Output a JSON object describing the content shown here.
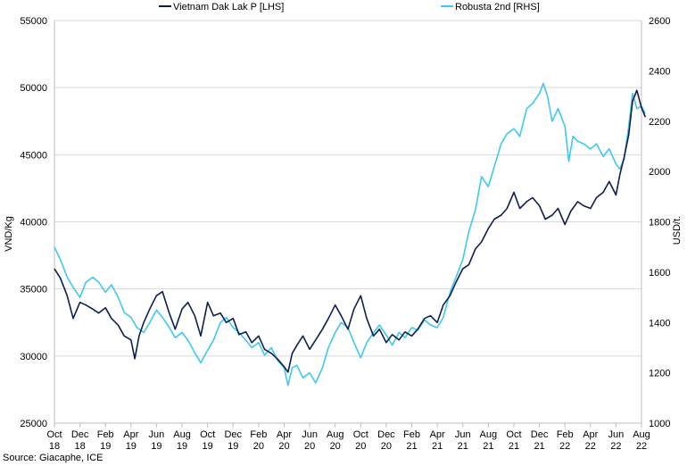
{
  "chart_data": {
    "type": "line",
    "title": "",
    "source": "Source: Giacaphe, ICE",
    "ylabel_left": "VND/Kg",
    "ylabel_right": "USD/t.",
    "ylim_left": [
      25000,
      55000
    ],
    "ylim_right": [
      1000,
      2600
    ],
    "yticks_left": [
      "25000",
      "30000",
      "35000",
      "40000",
      "45000",
      "50000",
      "55000"
    ],
    "yticks_right": [
      "1000",
      "1200",
      "1400",
      "1600",
      "1800",
      "2000",
      "2200",
      "2400",
      "2600"
    ],
    "xlim": [
      "2018-10",
      "2022-08"
    ],
    "xticks": [
      {
        "month": "Oct",
        "year": "18"
      },
      {
        "month": "Dec",
        "year": "18"
      },
      {
        "month": "Feb",
        "year": "19"
      },
      {
        "month": "Apr",
        "year": "19"
      },
      {
        "month": "Jun",
        "year": "19"
      },
      {
        "month": "Aug",
        "year": "19"
      },
      {
        "month": "Oct",
        "year": "19"
      },
      {
        "month": "Dec",
        "year": "19"
      },
      {
        "month": "Feb",
        "year": "20"
      },
      {
        "month": "Apr",
        "year": "20"
      },
      {
        "month": "Jun",
        "year": "20"
      },
      {
        "month": "Aug",
        "year": "20"
      },
      {
        "month": "Oct",
        "year": "20"
      },
      {
        "month": "Dec",
        "year": "20"
      },
      {
        "month": "Feb",
        "year": "21"
      },
      {
        "month": "Apr",
        "year": "21"
      },
      {
        "month": "Jun",
        "year": "21"
      },
      {
        "month": "Aug",
        "year": "21"
      },
      {
        "month": "Oct",
        "year": "21"
      },
      {
        "month": "Dec",
        "year": "21"
      },
      {
        "month": "Feb",
        "year": "22"
      },
      {
        "month": "Apr",
        "year": "22"
      },
      {
        "month": "Jun",
        "year": "22"
      },
      {
        "month": "Aug",
        "year": "22"
      }
    ],
    "grid": true,
    "legend_position": "top",
    "series": [
      {
        "name": "Vietnam Dak Lak P [LHS]",
        "axis": "left",
        "color": "#0d1f4f",
        "points": [
          [
            "2018-10-01",
            36500
          ],
          [
            "2018-10-15",
            35800
          ],
          [
            "2018-11-01",
            34500
          ],
          [
            "2018-11-15",
            32800
          ],
          [
            "2018-12-01",
            34000
          ],
          [
            "2018-12-15",
            33800
          ],
          [
            "2019-01-01",
            33500
          ],
          [
            "2019-01-15",
            33200
          ],
          [
            "2019-02-01",
            33600
          ],
          [
            "2019-02-15",
            32800
          ],
          [
            "2019-03-01",
            32300
          ],
          [
            "2019-03-15",
            31500
          ],
          [
            "2019-04-01",
            31200
          ],
          [
            "2019-04-10",
            29800
          ],
          [
            "2019-04-20",
            31500
          ],
          [
            "2019-05-01",
            32500
          ],
          [
            "2019-05-15",
            33500
          ],
          [
            "2019-06-01",
            34500
          ],
          [
            "2019-06-15",
            34800
          ],
          [
            "2019-07-01",
            33200
          ],
          [
            "2019-07-15",
            32000
          ],
          [
            "2019-08-01",
            33500
          ],
          [
            "2019-08-15",
            34000
          ],
          [
            "2019-09-01",
            33000
          ],
          [
            "2019-09-15",
            31500
          ],
          [
            "2019-10-01",
            34000
          ],
          [
            "2019-10-15",
            33000
          ],
          [
            "2019-11-01",
            33200
          ],
          [
            "2019-11-15",
            32500
          ],
          [
            "2019-12-01",
            32800
          ],
          [
            "2019-12-15",
            31600
          ],
          [
            "2020-01-01",
            31800
          ],
          [
            "2020-01-15",
            31000
          ],
          [
            "2020-02-01",
            31500
          ],
          [
            "2020-02-15",
            30500
          ],
          [
            "2020-03-01",
            30200
          ],
          [
            "2020-03-15",
            29800
          ],
          [
            "2020-04-01",
            29200
          ],
          [
            "2020-04-10",
            28800
          ],
          [
            "2020-04-20",
            30200
          ],
          [
            "2020-05-01",
            30800
          ],
          [
            "2020-05-15",
            31500
          ],
          [
            "2020-06-01",
            30500
          ],
          [
            "2020-06-15",
            31200
          ],
          [
            "2020-07-01",
            32000
          ],
          [
            "2020-07-15",
            32800
          ],
          [
            "2020-08-01",
            33800
          ],
          [
            "2020-08-15",
            33000
          ],
          [
            "2020-09-01",
            32000
          ],
          [
            "2020-09-15",
            33500
          ],
          [
            "2020-10-01",
            34500
          ],
          [
            "2020-10-15",
            32800
          ],
          [
            "2020-11-01",
            31500
          ],
          [
            "2020-11-15",
            32000
          ],
          [
            "2020-12-01",
            31000
          ],
          [
            "2020-12-15",
            31600
          ],
          [
            "2021-01-01",
            31200
          ],
          [
            "2021-01-15",
            31800
          ],
          [
            "2021-02-01",
            31500
          ],
          [
            "2021-02-15",
            32000
          ],
          [
            "2021-03-01",
            32800
          ],
          [
            "2021-03-15",
            33000
          ],
          [
            "2021-04-01",
            32500
          ],
          [
            "2021-04-15",
            33800
          ],
          [
            "2021-05-01",
            34500
          ],
          [
            "2021-05-15",
            35500
          ],
          [
            "2021-06-01",
            36500
          ],
          [
            "2021-06-15",
            36800
          ],
          [
            "2021-07-01",
            38000
          ],
          [
            "2021-07-15",
            38500
          ],
          [
            "2021-08-01",
            39500
          ],
          [
            "2021-08-15",
            40200
          ],
          [
            "2021-09-01",
            40500
          ],
          [
            "2021-09-15",
            41000
          ],
          [
            "2021-10-01",
            42200
          ],
          [
            "2021-10-15",
            41000
          ],
          [
            "2021-11-01",
            41500
          ],
          [
            "2021-11-15",
            41800
          ],
          [
            "2021-12-01",
            41200
          ],
          [
            "2021-12-15",
            40200
          ],
          [
            "2022-01-01",
            40500
          ],
          [
            "2022-01-15",
            41000
          ],
          [
            "2022-02-01",
            39800
          ],
          [
            "2022-02-15",
            40800
          ],
          [
            "2022-03-01",
            41500
          ],
          [
            "2022-03-15",
            41200
          ],
          [
            "2022-04-01",
            41000
          ],
          [
            "2022-04-15",
            41800
          ],
          [
            "2022-05-01",
            42200
          ],
          [
            "2022-05-15",
            43000
          ],
          [
            "2022-06-01",
            42000
          ],
          [
            "2022-06-10",
            43500
          ],
          [
            "2022-06-20",
            44800
          ],
          [
            "2022-07-01",
            46500
          ],
          [
            "2022-07-10",
            49000
          ],
          [
            "2022-07-20",
            49800
          ],
          [
            "2022-08-01",
            48500
          ],
          [
            "2022-08-10",
            47800
          ]
        ]
      },
      {
        "name": "Robusta 2nd [RHS]",
        "axis": "right",
        "color": "#3ec8ee",
        "points": [
          [
            "2018-10-01",
            1700
          ],
          [
            "2018-10-15",
            1650
          ],
          [
            "2018-11-01",
            1580
          ],
          [
            "2018-11-15",
            1540
          ],
          [
            "2018-12-01",
            1500
          ],
          [
            "2018-12-15",
            1560
          ],
          [
            "2019-01-01",
            1580
          ],
          [
            "2019-01-15",
            1560
          ],
          [
            "2019-02-01",
            1520
          ],
          [
            "2019-02-15",
            1550
          ],
          [
            "2019-03-01",
            1500
          ],
          [
            "2019-03-15",
            1440
          ],
          [
            "2019-04-01",
            1420
          ],
          [
            "2019-04-15",
            1380
          ],
          [
            "2019-05-01",
            1360
          ],
          [
            "2019-05-15",
            1400
          ],
          [
            "2019-06-01",
            1450
          ],
          [
            "2019-06-15",
            1420
          ],
          [
            "2019-07-01",
            1380
          ],
          [
            "2019-07-15",
            1340
          ],
          [
            "2019-08-01",
            1360
          ],
          [
            "2019-08-15",
            1330
          ],
          [
            "2019-09-01",
            1280
          ],
          [
            "2019-09-15",
            1240
          ],
          [
            "2019-10-01",
            1290
          ],
          [
            "2019-10-15",
            1330
          ],
          [
            "2019-11-01",
            1400
          ],
          [
            "2019-11-15",
            1420
          ],
          [
            "2019-12-01",
            1380
          ],
          [
            "2019-12-15",
            1360
          ],
          [
            "2020-01-01",
            1330
          ],
          [
            "2020-01-15",
            1300
          ],
          [
            "2020-02-01",
            1320
          ],
          [
            "2020-02-15",
            1270
          ],
          [
            "2020-03-01",
            1300
          ],
          [
            "2020-03-15",
            1250
          ],
          [
            "2020-04-01",
            1220
          ],
          [
            "2020-04-10",
            1150
          ],
          [
            "2020-04-20",
            1220
          ],
          [
            "2020-05-01",
            1230
          ],
          [
            "2020-05-15",
            1180
          ],
          [
            "2020-06-01",
            1200
          ],
          [
            "2020-06-15",
            1160
          ],
          [
            "2020-07-01",
            1220
          ],
          [
            "2020-07-15",
            1300
          ],
          [
            "2020-08-01",
            1360
          ],
          [
            "2020-08-15",
            1400
          ],
          [
            "2020-09-01",
            1380
          ],
          [
            "2020-09-15",
            1320
          ],
          [
            "2020-10-01",
            1260
          ],
          [
            "2020-10-15",
            1320
          ],
          [
            "2020-11-01",
            1360
          ],
          [
            "2020-11-15",
            1390
          ],
          [
            "2020-12-01",
            1350
          ],
          [
            "2020-12-15",
            1310
          ],
          [
            "2021-01-01",
            1360
          ],
          [
            "2021-01-15",
            1340
          ],
          [
            "2021-02-01",
            1380
          ],
          [
            "2021-02-15",
            1370
          ],
          [
            "2021-03-01",
            1410
          ],
          [
            "2021-03-15",
            1390
          ],
          [
            "2021-04-01",
            1380
          ],
          [
            "2021-04-15",
            1420
          ],
          [
            "2021-05-01",
            1520
          ],
          [
            "2021-05-15",
            1580
          ],
          [
            "2021-06-01",
            1650
          ],
          [
            "2021-06-15",
            1760
          ],
          [
            "2021-07-01",
            1850
          ],
          [
            "2021-07-15",
            1980
          ],
          [
            "2021-08-01",
            1940
          ],
          [
            "2021-08-15",
            2020
          ],
          [
            "2021-09-01",
            2110
          ],
          [
            "2021-09-15",
            2150
          ],
          [
            "2021-10-01",
            2170
          ],
          [
            "2021-10-15",
            2140
          ],
          [
            "2021-11-01",
            2250
          ],
          [
            "2021-11-15",
            2270
          ],
          [
            "2021-12-01",
            2310
          ],
          [
            "2021-12-10",
            2350
          ],
          [
            "2021-12-20",
            2300
          ],
          [
            "2022-01-01",
            2200
          ],
          [
            "2022-01-15",
            2250
          ],
          [
            "2022-02-01",
            2180
          ],
          [
            "2022-02-10",
            2040
          ],
          [
            "2022-02-20",
            2140
          ],
          [
            "2022-03-01",
            2120
          ],
          [
            "2022-03-15",
            2110
          ],
          [
            "2022-04-01",
            2090
          ],
          [
            "2022-04-15",
            2110
          ],
          [
            "2022-05-01",
            2060
          ],
          [
            "2022-05-15",
            2090
          ],
          [
            "2022-06-01",
            2030
          ],
          [
            "2022-06-10",
            2010
          ],
          [
            "2022-06-20",
            2050
          ],
          [
            "2022-07-01",
            2180
          ],
          [
            "2022-07-10",
            2310
          ],
          [
            "2022-07-20",
            2250
          ],
          [
            "2022-08-01",
            2260
          ],
          [
            "2022-08-10",
            2230
          ]
        ]
      }
    ]
  }
}
